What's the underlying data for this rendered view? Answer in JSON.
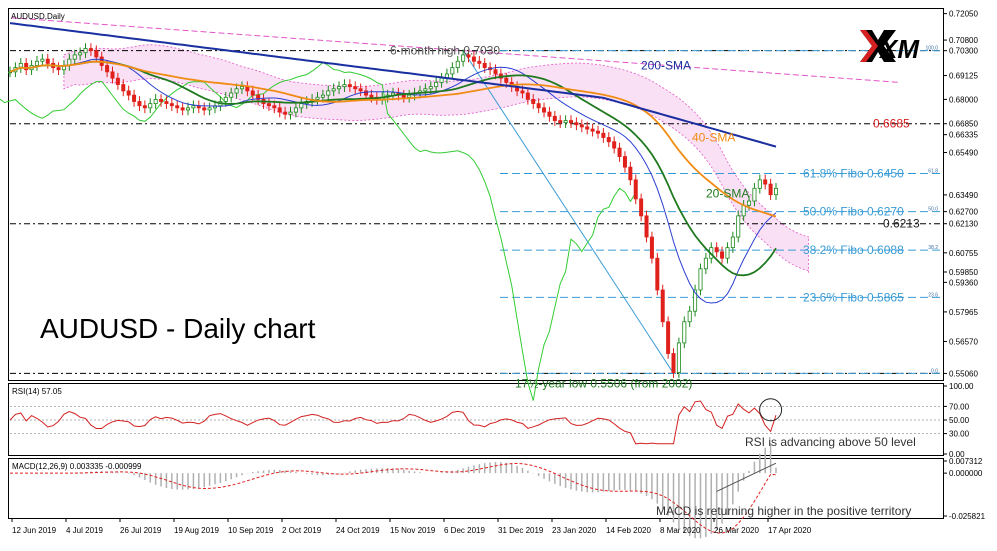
{
  "title_symbol": "AUDUSD,Daily",
  "chart_heading": "AUDUSD - Daily chart",
  "brand": "XM",
  "colors": {
    "candle_up": "#1a8a1a",
    "candle_down": "#e0201a",
    "sma20": "#1f7a1f",
    "sma40": "#f08c14",
    "sma200": "#1a2fa0",
    "short_sma": "#2a3fd0",
    "chikou": "#33cc33",
    "cloud": "#e255c8",
    "fibo": "#3a9cd6",
    "level": "#000000",
    "trendline": "#3a9cd6",
    "rsi": "#d42020",
    "macd_hist": "#b0b0b0",
    "macd_signal": "#e02020",
    "annotation_red": "#d42020",
    "annotation_green": "#1f7a1f",
    "annotation_blue": "#1a2fa0",
    "annotation_orange": "#f08c14"
  },
  "chart_data": [
    {
      "type": "candlestick",
      "title": "AUDUSD - Daily chart",
      "x_ticks": [
        "12 Jun 2019",
        "4 Jul 2019",
        "26 Jul 2019",
        "19 Aug 2019",
        "10 Sep 2019",
        "2 Oct 2019",
        "24 Oct 2019",
        "15 Nov 2019",
        "6 Dec 2019",
        "31 Dec 2019",
        "23 Jan 2020",
        "14 Feb 2020",
        "8 Mar 2020",
        "26 Mar 2020",
        "17 Apr 2020"
      ],
      "y_ticks": [
        "0.72050",
        "0.70800",
        "0.70300",
        "0.69125",
        "0.68000",
        "0.66850",
        "0.66335",
        "0.65490",
        "0.63490",
        "0.62700",
        "0.62130",
        "0.60755",
        "0.59850",
        "0.59360",
        "0.57965",
        "0.56570",
        "0.55060"
      ],
      "ylim": [
        0.5475,
        0.7222
      ],
      "series_note": "daily closes estimated from the chart",
      "close": [
        0.693,
        0.695,
        0.697,
        0.694,
        0.696,
        0.698,
        0.699,
        0.697,
        0.695,
        0.694,
        0.696,
        0.699,
        0.701,
        0.702,
        0.704,
        0.703,
        0.7,
        0.696,
        0.693,
        0.69,
        0.687,
        0.684,
        0.682,
        0.679,
        0.677,
        0.676,
        0.678,
        0.68,
        0.679,
        0.678,
        0.677,
        0.676,
        0.675,
        0.676,
        0.677,
        0.676,
        0.675,
        0.676,
        0.677,
        0.679,
        0.681,
        0.683,
        0.685,
        0.686,
        0.684,
        0.682,
        0.68,
        0.678,
        0.677,
        0.676,
        0.674,
        0.673,
        0.674,
        0.676,
        0.678,
        0.679,
        0.68,
        0.681,
        0.682,
        0.684,
        0.685,
        0.686,
        0.687,
        0.686,
        0.685,
        0.684,
        0.682,
        0.681,
        0.68,
        0.681,
        0.682,
        0.683,
        0.682,
        0.681,
        0.682,
        0.683,
        0.684,
        0.685,
        0.686,
        0.688,
        0.69,
        0.692,
        0.695,
        0.698,
        0.701,
        0.7,
        0.698,
        0.697,
        0.695,
        0.694,
        0.692,
        0.69,
        0.688,
        0.686,
        0.684,
        0.683,
        0.68,
        0.678,
        0.676,
        0.674,
        0.672,
        0.67,
        0.669,
        0.67,
        0.669,
        0.668,
        0.667,
        0.666,
        0.665,
        0.664,
        0.662,
        0.66,
        0.657,
        0.653,
        0.648,
        0.642,
        0.633,
        0.625,
        0.615,
        0.605,
        0.59,
        0.575,
        0.56,
        0.551,
        0.565,
        0.575,
        0.58,
        0.59,
        0.6,
        0.605,
        0.61,
        0.608,
        0.605,
        0.61,
        0.615,
        0.625,
        0.63,
        0.632,
        0.638,
        0.642,
        0.64,
        0.635,
        0.638
      ],
      "levels": [
        {
          "value": 0.703,
          "label": "6-month high 0.7030"
        },
        {
          "value": 0.6685,
          "label": "0.6685"
        },
        {
          "value": 0.6213,
          "label": "0.6213"
        },
        {
          "value": 0.5506,
          "label": "17½-year low 0.5506 (from 2002)"
        }
      ],
      "fibonacci": [
        {
          "value": 0.645,
          "label": "61.8% Fibo 0.6450",
          "tag": "61.8"
        },
        {
          "value": 0.627,
          "label": "50.0% Fibo 0.6270",
          "tag": "50.0"
        },
        {
          "value": 0.6088,
          "label": "38.2% Fibo 0.6088",
          "tag": "38.2"
        },
        {
          "value": 0.5865,
          "label": "23.6% Fibo 0.5865",
          "tag": "23.6"
        },
        {
          "value": 0.5506,
          "label": "",
          "tag": "0.0"
        },
        {
          "value": 0.703,
          "label": "",
          "tag": "100.0"
        }
      ],
      "series_labels": {
        "sma200": "200-SMA",
        "sma40": "40-SMA",
        "sma20": "20-SMA"
      }
    },
    {
      "type": "line",
      "title": "RSI(14) 57.05",
      "ylim": [
        0,
        100
      ],
      "y_ticks": [
        "100.00",
        "70.00",
        "50.00",
        "30.00",
        "0.00"
      ],
      "annotation": "RSI is advancing above 50 level",
      "last_value": 57.05
    },
    {
      "type": "bar",
      "title": "MACD(12,26,9) 0.003335 -0.000999",
      "y_ticks": [
        "0.007312",
        "0.000000",
        "-0.025821"
      ],
      "ylim": [
        -0.025821,
        0.007312
      ],
      "annotation": "MACD is returning higher in the positive territory",
      "macd": 0.003335,
      "signal": -0.000999
    }
  ]
}
